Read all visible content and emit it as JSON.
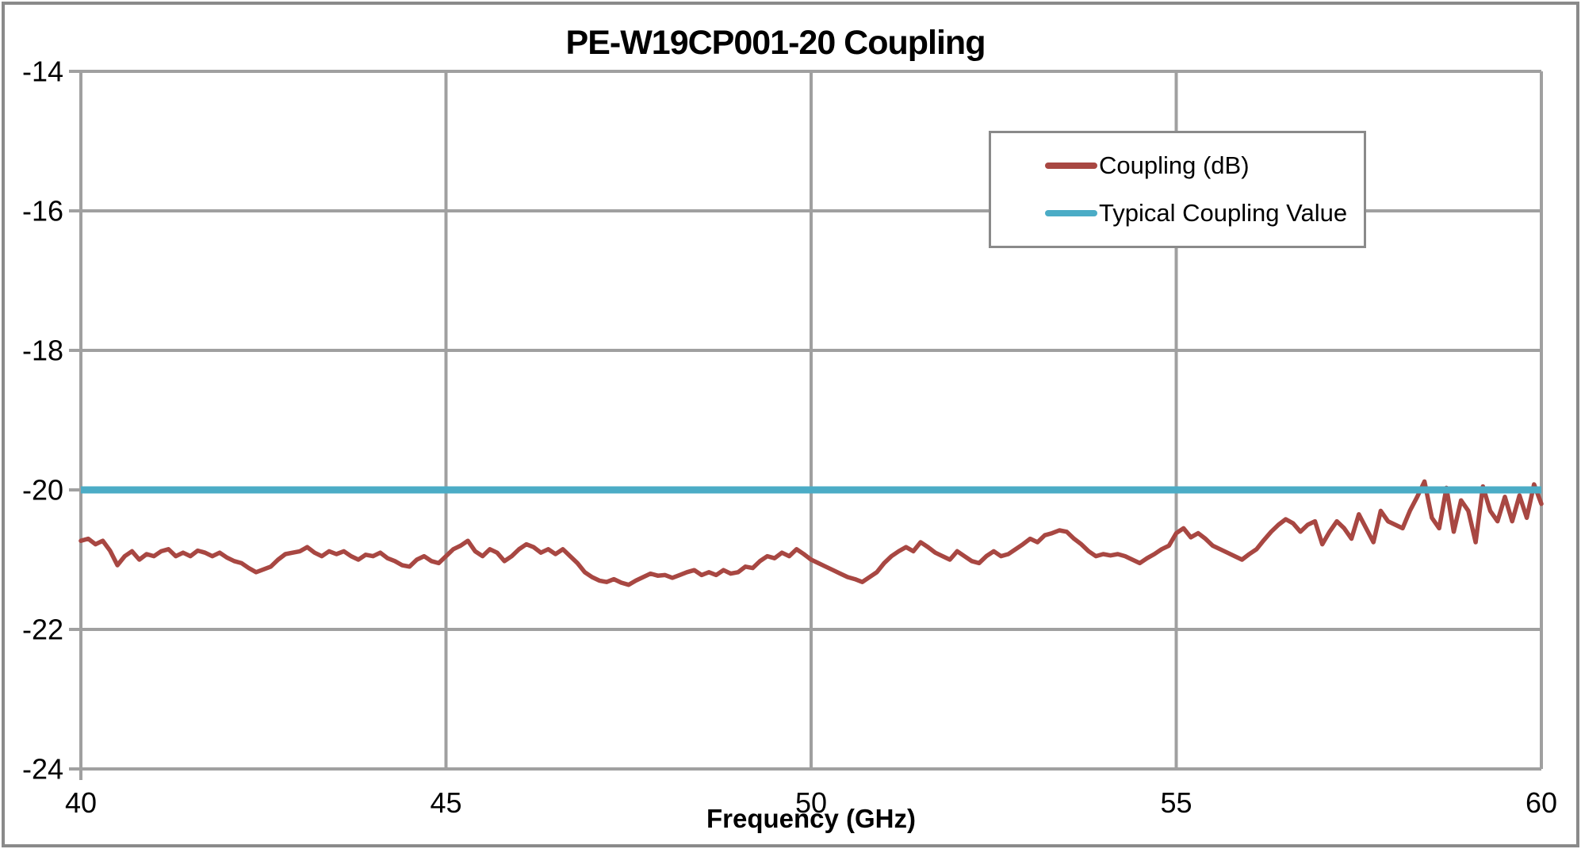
{
  "figure": {
    "border_color": "#8A8A8A",
    "background_color": "#FFFFFF",
    "gridline_color": "#A0A0A0",
    "text_color": "#000000"
  },
  "legend": {
    "items": [
      {
        "label": "Coupling (dB)",
        "color": "#A84742"
      },
      {
        "label": "Typical Coupling Value",
        "color": "#4BACC6"
      }
    ]
  },
  "chart_data": {
    "type": "line",
    "title": "PE-W19CP001-20 Coupling",
    "xlabel": "Frequency (GHz)",
    "ylabel": "",
    "xlim": [
      40,
      60
    ],
    "ylim": [
      -24,
      -14
    ],
    "x_ticks": [
      40,
      45,
      50,
      55,
      60
    ],
    "y_ticks": [
      -14,
      -16,
      -18,
      -20,
      -22,
      -24
    ],
    "grid": true,
    "legend_position": "upper-right-inside",
    "series": [
      {
        "name": "Coupling (dB)",
        "color": "#A84742",
        "x_start": 40,
        "x_step": 0.1,
        "values": [
          -20.73,
          -20.7,
          -20.78,
          -20.73,
          -20.87,
          -21.08,
          -20.95,
          -20.88,
          -21.0,
          -20.92,
          -20.95,
          -20.88,
          -20.85,
          -20.95,
          -20.9,
          -20.95,
          -20.87,
          -20.9,
          -20.95,
          -20.9,
          -20.97,
          -21.02,
          -21.05,
          -21.12,
          -21.18,
          -21.14,
          -21.1,
          -21.0,
          -20.92,
          -20.9,
          -20.88,
          -20.82,
          -20.9,
          -20.95,
          -20.88,
          -20.92,
          -20.88,
          -20.95,
          -21.0,
          -20.93,
          -20.95,
          -20.9,
          -20.98,
          -21.02,
          -21.08,
          -21.1,
          -21.0,
          -20.95,
          -21.02,
          -21.05,
          -20.95,
          -20.85,
          -20.8,
          -20.73,
          -20.88,
          -20.95,
          -20.85,
          -20.9,
          -21.02,
          -20.95,
          -20.85,
          -20.78,
          -20.82,
          -20.9,
          -20.85,
          -20.92,
          -20.85,
          -20.95,
          -21.05,
          -21.18,
          -21.25,
          -21.3,
          -21.32,
          -21.28,
          -21.33,
          -21.36,
          -21.3,
          -21.25,
          -21.2,
          -21.23,
          -21.22,
          -21.26,
          -21.22,
          -21.18,
          -21.15,
          -21.22,
          -21.18,
          -21.22,
          -21.15,
          -21.2,
          -21.18,
          -21.1,
          -21.12,
          -21.02,
          -20.95,
          -20.98,
          -20.9,
          -20.95,
          -20.85,
          -20.92,
          -21.0,
          -21.05,
          -21.1,
          -21.15,
          -21.2,
          -21.25,
          -21.28,
          -21.32,
          -21.25,
          -21.18,
          -21.05,
          -20.95,
          -20.88,
          -20.82,
          -20.88,
          -20.75,
          -20.82,
          -20.9,
          -20.95,
          -21.0,
          -20.88,
          -20.95,
          -21.02,
          -21.05,
          -20.95,
          -20.88,
          -20.95,
          -20.92,
          -20.85,
          -20.78,
          -20.7,
          -20.75,
          -20.65,
          -20.62,
          -20.58,
          -20.6,
          -20.7,
          -20.78,
          -20.88,
          -20.95,
          -20.92,
          -20.94,
          -20.92,
          -20.95,
          -21.0,
          -21.05,
          -20.98,
          -20.92,
          -20.85,
          -20.8,
          -20.62,
          -20.55,
          -20.68,
          -20.62,
          -20.7,
          -20.8,
          -20.85,
          -20.9,
          -20.95,
          -21.0,
          -20.92,
          -20.85,
          -20.72,
          -20.6,
          -20.5,
          -20.42,
          -20.48,
          -20.6,
          -20.5,
          -20.45,
          -20.78,
          -20.6,
          -20.45,
          -20.55,
          -20.7,
          -20.35,
          -20.55,
          -20.75,
          -20.3,
          -20.45,
          -20.5,
          -20.55,
          -20.3,
          -20.1,
          -19.88,
          -20.4,
          -20.55,
          -19.97,
          -20.6,
          -20.15,
          -20.3,
          -20.75,
          -19.95,
          -20.3,
          -20.45,
          -20.1,
          -20.45,
          -20.08,
          -20.4,
          -19.92,
          -20.2
        ]
      },
      {
        "name": "Typical Coupling Value",
        "color": "#4BACC6",
        "constant": -20
      }
    ]
  }
}
